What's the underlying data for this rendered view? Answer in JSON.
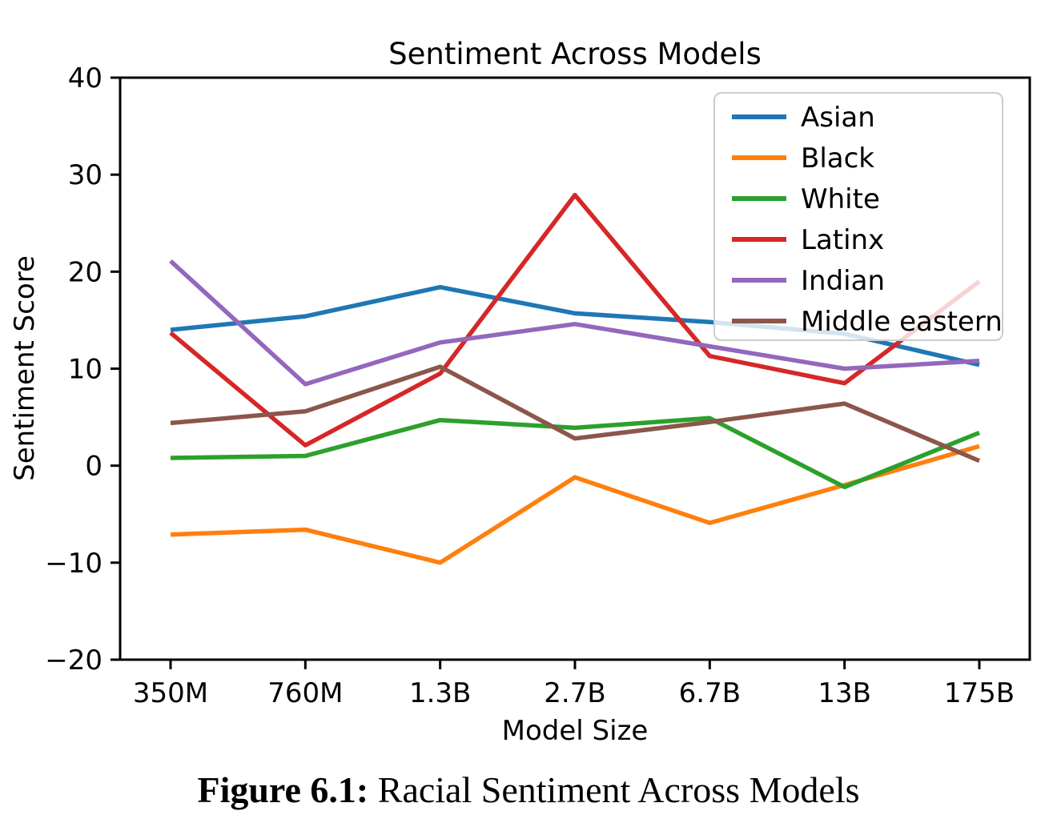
{
  "figure": {
    "caption_label": "Figure 6.1:",
    "caption_text": "Racial Sentiment Across Models"
  },
  "chart_data": {
    "type": "line",
    "title": "Sentiment Across Models",
    "xlabel": "Model Size",
    "ylabel": "Sentiment Score",
    "categories": [
      "350M",
      "760M",
      "1.3B",
      "2.7B",
      "6.7B",
      "13B",
      "175B"
    ],
    "series": [
      {
        "name": "Asian",
        "color": "#1f77b4",
        "values": [
          14.0,
          15.4,
          18.4,
          15.7,
          14.8,
          13.6,
          10.4
        ]
      },
      {
        "name": "Black",
        "color": "#ff7f0e",
        "values": [
          -7.1,
          -6.6,
          -10.0,
          -1.2,
          -5.9,
          -2.0,
          2.0
        ]
      },
      {
        "name": "White",
        "color": "#2ca02c",
        "values": [
          0.8,
          1.0,
          4.7,
          3.9,
          4.9,
          -2.2,
          3.4
        ]
      },
      {
        "name": "Latinx",
        "color": "#d62728",
        "values": [
          13.7,
          2.1,
          9.5,
          27.9,
          11.3,
          8.5,
          19.0
        ]
      },
      {
        "name": "Indian",
        "color": "#9467bd",
        "values": [
          21.1,
          8.4,
          12.7,
          14.6,
          12.3,
          10.0,
          10.8
        ]
      },
      {
        "name": "Middle eastern",
        "color": "#8c564b",
        "values": [
          4.4,
          5.6,
          10.2,
          2.8,
          4.5,
          6.4,
          0.5
        ]
      }
    ],
    "ylim": [
      -20,
      40
    ],
    "yticks": [
      -20,
      -10,
      0,
      10,
      20,
      30,
      40
    ],
    "ytick_labels": [
      "−20",
      "−10",
      "0",
      "10",
      "20",
      "30",
      "40"
    ],
    "grid": false,
    "legend_position": "upper right"
  }
}
